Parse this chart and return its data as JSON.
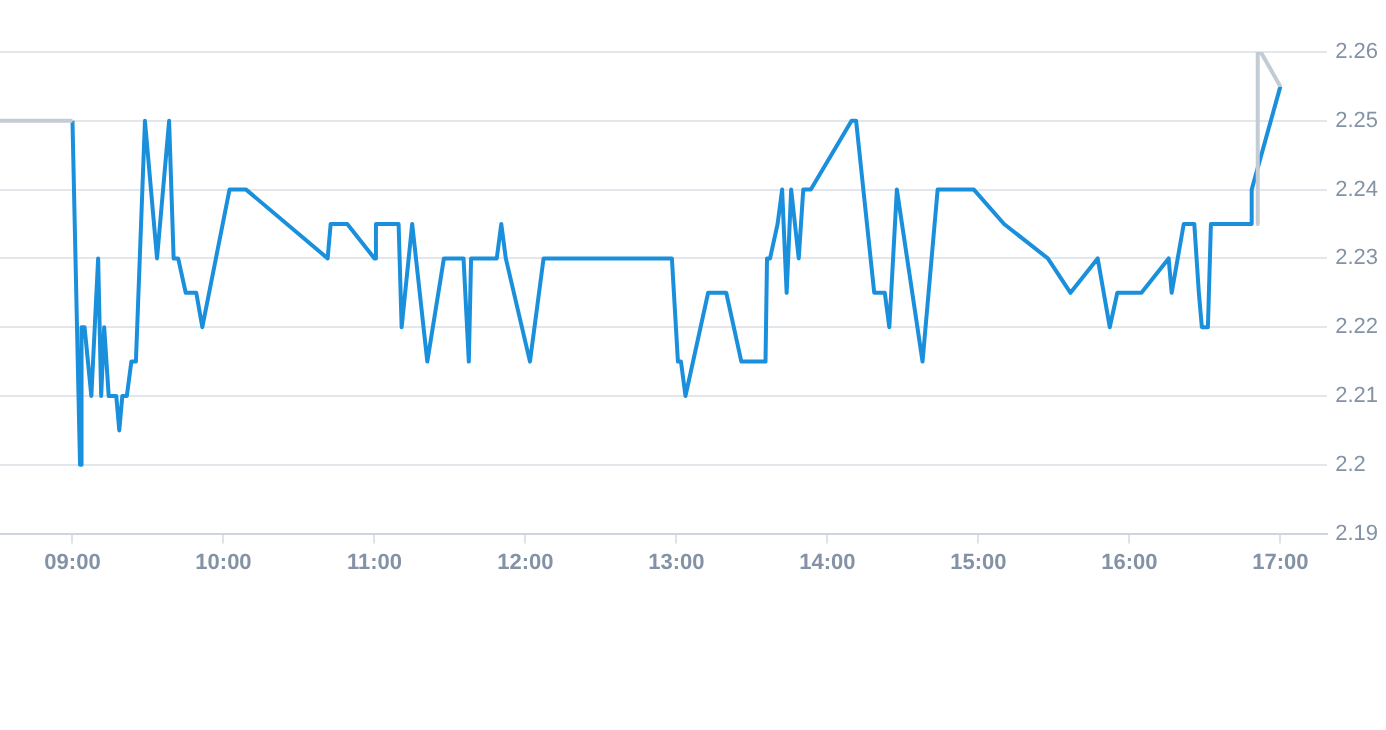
{
  "chart_data": {
    "type": "line",
    "xlim": [
      8.52,
      17.31
    ],
    "ylim": [
      2.19,
      2.26
    ],
    "xticks": [
      {
        "value": 9,
        "label": "09:00"
      },
      {
        "value": 10,
        "label": "10:00"
      },
      {
        "value": 11,
        "label": "11:00"
      },
      {
        "value": 12,
        "label": "12:00"
      },
      {
        "value": 13,
        "label": "13:00"
      },
      {
        "value": 14,
        "label": "14:00"
      },
      {
        "value": 15,
        "label": "15:00"
      },
      {
        "value": 16,
        "label": "16:00"
      },
      {
        "value": 17,
        "label": "17:00"
      }
    ],
    "yticks": [
      2.19,
      2.2,
      2.21,
      2.22,
      2.23,
      2.24,
      2.25,
      2.26
    ],
    "grid": "y",
    "legend": false,
    "marker": "none",
    "line_style": "solid",
    "series": [
      {
        "color": "#c3ccd4",
        "x": [
          8.52,
          9.0,
          12.0,
          16.84,
          16.85,
          16.87,
          17.0
        ],
        "values": [
          2.25,
          2.25,
          null,
          2.235,
          2.26,
          2.26,
          2.255
        ]
      },
      {
        "color": "#1a90dd",
        "x": [
          9.0,
          9.05,
          9.06,
          9.08,
          9.125,
          9.17,
          9.19,
          9.21,
          9.24,
          9.29,
          9.31,
          9.33,
          9.36,
          9.39,
          9.42,
          9.48,
          9.56,
          9.64,
          9.67,
          9.7,
          9.75,
          9.82,
          9.86,
          10.04,
          10.15,
          10.69,
          10.71,
          10.82,
          11.0,
          11.01,
          11.16,
          11.18,
          11.25,
          11.35,
          11.46,
          11.59,
          11.625,
          11.64,
          11.81,
          11.84,
          11.87,
          12.03,
          12.12,
          12.97,
          13.01,
          13.03,
          13.06,
          13.21,
          13.33,
          13.43,
          13.59,
          13.6,
          13.62,
          13.67,
          13.7,
          13.73,
          13.76,
          13.81,
          13.84,
          13.89,
          14.16,
          14.19,
          14.31,
          14.38,
          14.41,
          14.46,
          14.63,
          14.73,
          14.97,
          15.17,
          15.46,
          15.61,
          15.79,
          15.87,
          15.92,
          16.08,
          16.26,
          16.28,
          16.36,
          16.43,
          16.46,
          16.48,
          16.52,
          16.54,
          16.8,
          16.81,
          17.0
        ],
        "values": [
          2.25,
          2.2,
          2.22,
          2.22,
          2.21,
          2.23,
          2.21,
          2.22,
          2.21,
          2.21,
          2.205,
          2.21,
          2.21,
          2.215,
          2.215,
          2.25,
          2.23,
          2.25,
          2.23,
          2.23,
          2.225,
          2.225,
          2.22,
          2.24,
          2.24,
          2.23,
          2.235,
          2.235,
          2.23,
          2.235,
          2.235,
          2.22,
          2.235,
          2.215,
          2.23,
          2.23,
          2.215,
          2.23,
          2.23,
          2.235,
          2.23,
          2.215,
          2.23,
          2.23,
          2.215,
          2.215,
          2.21,
          2.225,
          2.225,
          2.215,
          2.215,
          2.23,
          2.23,
          2.235,
          2.24,
          2.225,
          2.24,
          2.23,
          2.24,
          2.24,
          2.25,
          2.25,
          2.225,
          2.225,
          2.22,
          2.24,
          2.215,
          2.24,
          2.24,
          2.235,
          2.23,
          2.225,
          2.23,
          2.22,
          2.225,
          2.225,
          2.23,
          2.225,
          2.235,
          2.235,
          2.225,
          2.22,
          2.22,
          2.235,
          2.235,
          2.24,
          2.255
        ]
      }
    ]
  }
}
